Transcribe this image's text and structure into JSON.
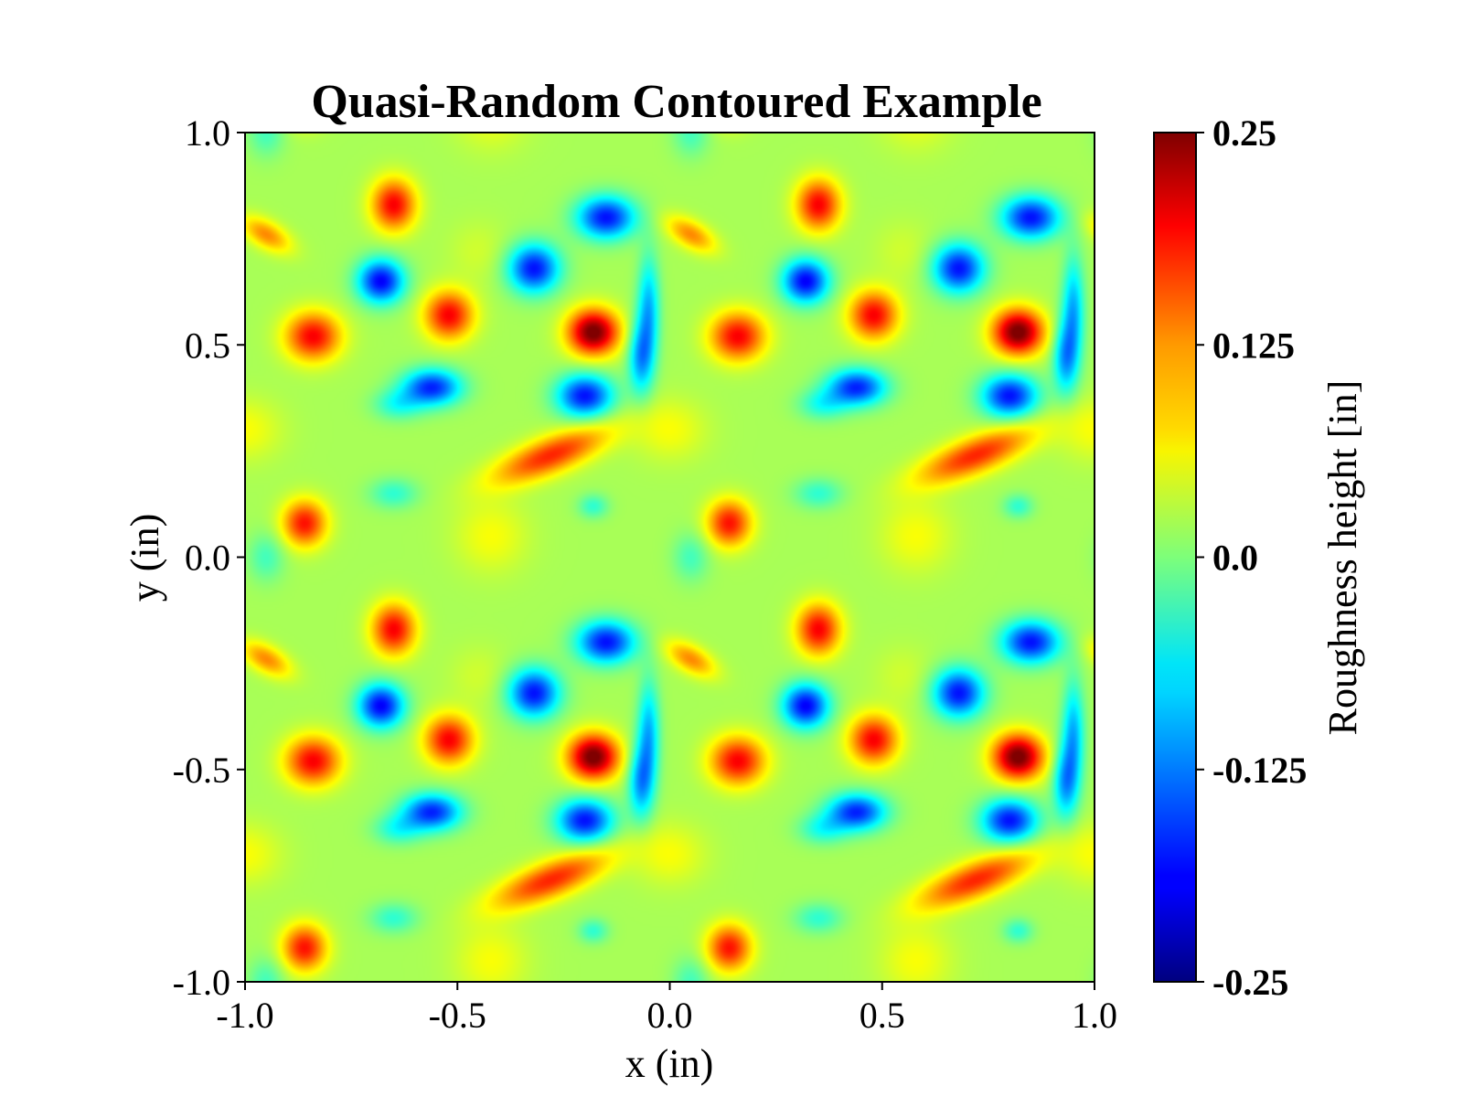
{
  "chart_data": {
    "type": "heatmap",
    "title": "Quasi-Random Contoured Example",
    "xlabel": "x (in)",
    "ylabel": "y (in)",
    "xlim": [
      -1.0,
      1.0
    ],
    "ylim": [
      -1.0,
      1.0
    ],
    "x_ticks": [
      "-1.0",
      "-0.5",
      "0.0",
      "0.5",
      "1.0"
    ],
    "y_ticks": [
      "-1.0",
      "-0.5",
      "0.0",
      "0.5",
      "1.0"
    ],
    "colormap": "jet",
    "colorbar": {
      "label": "Roughness height [in]",
      "range": [
        -0.25,
        0.25
      ],
      "ticks": [
        "-0.25",
        "-0.125",
        "0.0",
        "0.125",
        "0.25"
      ]
    },
    "period": [
      1.0,
      1.0
    ],
    "features": [
      {
        "x": -0.15,
        "y": 0.8,
        "sx": 0.048,
        "sy": 0.035,
        "h": -0.2
      },
      {
        "x": 0.35,
        "y": 0.83,
        "sx": 0.036,
        "sy": 0.042,
        "h": 0.17
      },
      {
        "x": 0.32,
        "y": 0.65,
        "sx": 0.038,
        "sy": 0.036,
        "h": -0.21
      },
      {
        "x": 0.05,
        "y": 0.76,
        "sx": 0.045,
        "sy": 0.022,
        "h": 0.1,
        "angle": -30
      },
      {
        "x": 0.16,
        "y": 0.52,
        "sx": 0.045,
        "sy": 0.04,
        "h": 0.17
      },
      {
        "x": 0.48,
        "y": 0.57,
        "sx": 0.04,
        "sy": 0.04,
        "h": 0.17
      },
      {
        "x": 0.68,
        "y": 0.68,
        "sx": 0.042,
        "sy": 0.04,
        "h": -0.2
      },
      {
        "x": 0.82,
        "y": 0.53,
        "sx": 0.042,
        "sy": 0.038,
        "h": 0.24
      },
      {
        "x": 0.95,
        "y": 0.58,
        "sx": 0.018,
        "sy": 0.09,
        "h": -0.12
      },
      {
        "x": 0.93,
        "y": 0.47,
        "sx": 0.02,
        "sy": 0.06,
        "h": -0.12
      },
      {
        "x": 0.44,
        "y": 0.4,
        "sx": 0.048,
        "sy": 0.03,
        "h": -0.19
      },
      {
        "x": 0.8,
        "y": 0.38,
        "sx": 0.046,
        "sy": 0.035,
        "h": -0.2
      },
      {
        "x": 0.36,
        "y": 0.36,
        "sx": 0.04,
        "sy": 0.025,
        "h": -0.07
      },
      {
        "x": 0.72,
        "y": 0.24,
        "sx": 0.1,
        "sy": 0.03,
        "h": 0.15,
        "angle": 22
      },
      {
        "x": 0.82,
        "y": 0.12,
        "sx": 0.025,
        "sy": 0.02,
        "h": -0.06
      },
      {
        "x": 0.14,
        "y": 0.08,
        "sx": 0.036,
        "sy": 0.038,
        "h": 0.16
      },
      {
        "x": 0.35,
        "y": 0.15,
        "sx": 0.04,
        "sy": 0.025,
        "h": -0.06
      },
      {
        "x": 0.05,
        "y": 0.0,
        "sx": 0.03,
        "sy": 0.04,
        "h": -0.05
      },
      {
        "x": 0.58,
        "y": 0.05,
        "sx": 0.06,
        "sy": 0.06,
        "h": 0.04
      },
      {
        "x": 0.0,
        "y": 0.3,
        "sx": 0.06,
        "sy": 0.05,
        "h": 0.04
      },
      {
        "x": 0.55,
        "y": 0.72,
        "sx": 0.05,
        "sy": 0.05,
        "h": 0.02
      }
    ]
  }
}
